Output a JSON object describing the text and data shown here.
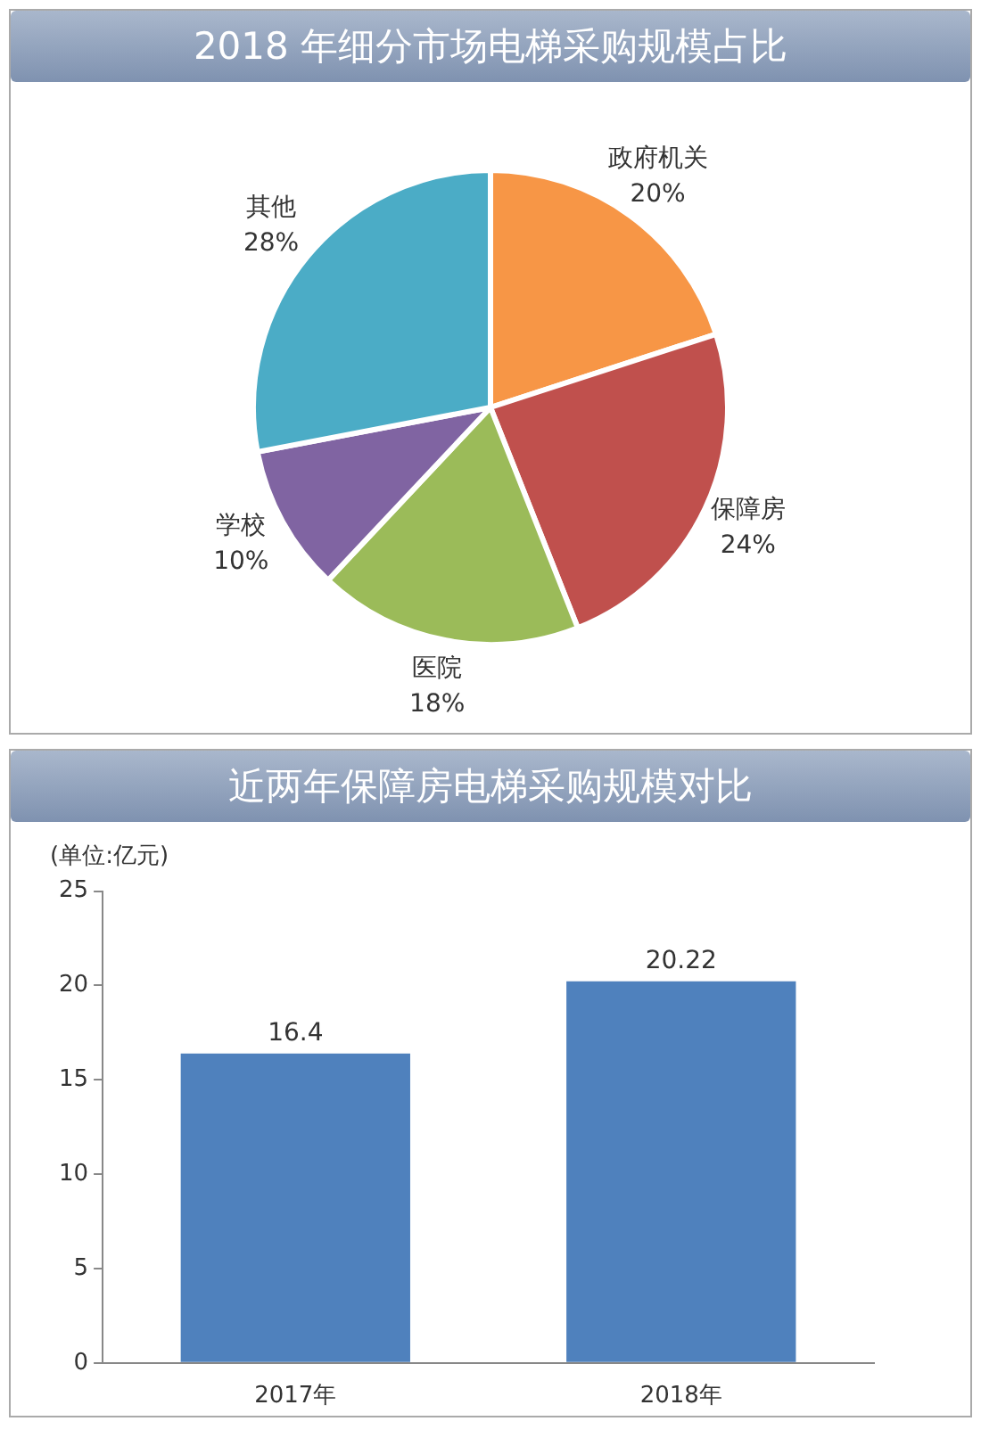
{
  "chart_data": [
    {
      "type": "pie",
      "title": "2018 年细分市场电梯采购规模占比",
      "categories": [
        "政府机关",
        "保障房",
        "医院",
        "学校",
        "其他"
      ],
      "values": [
        20,
        24,
        18,
        10,
        28
      ],
      "colors": [
        "#f79646",
        "#c0504d",
        "#9bbb59",
        "#8064a2",
        "#4bacc6"
      ],
      "value_labels": [
        "20%",
        "24%",
        "18%",
        "10%",
        "28%"
      ],
      "legend": false
    },
    {
      "type": "bar",
      "title": "近两年保障房电梯采购规模对比",
      "ylabel": "(单位:亿元)",
      "categories": [
        "2017年",
        "2018年"
      ],
      "values": [
        16.4,
        20.22
      ],
      "color": "#4f81bd",
      "ylim": [
        0,
        25
      ],
      "yticks": [
        0,
        5,
        10,
        15,
        20,
        25
      ],
      "grid": false,
      "data_labels": true,
      "legend": false
    }
  ]
}
